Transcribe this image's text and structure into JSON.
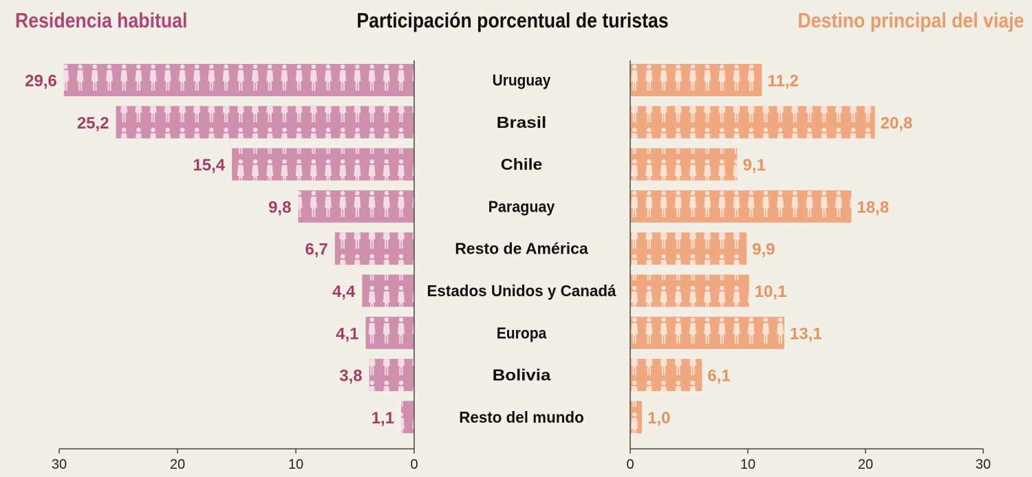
{
  "header": {
    "left_title": "Residencia habitual",
    "center_title": "Participación porcentual de turistas",
    "right_title": "Destino principal del viaje"
  },
  "colors": {
    "background": "#f2efe7",
    "left_bar": "#cf90ad",
    "left_text": "#a83b66",
    "right_bar": "#f0a880",
    "right_text": "#e8935e",
    "figure": "#f3dce6",
    "figure_right": "#fbe2d2",
    "axis": "#444444"
  },
  "chart_data": {
    "type": "bar",
    "layout": "back-to-back horizontal pictogram bars",
    "title": "Participación porcentual de turistas",
    "categories": [
      "Uruguay",
      "Brasil",
      "Chile",
      "Paraguay",
      "Resto de América",
      "Estados Unidos y Canadá",
      "Europa",
      "Bolivia",
      "Resto del mundo"
    ],
    "series": [
      {
        "name": "Residencia habitual",
        "side": "left",
        "values": [
          29.6,
          25.2,
          15.4,
          9.8,
          6.7,
          4.4,
          4.1,
          3.8,
          1.1
        ],
        "labels": [
          "29,6",
          "25,2",
          "15,4",
          "9,8",
          "6,7",
          "4,4",
          "4,1",
          "3,8",
          "1,1"
        ]
      },
      {
        "name": "Destino principal del viaje",
        "side": "right",
        "values": [
          11.2,
          20.8,
          9.1,
          18.8,
          9.9,
          10.1,
          13.1,
          6.1,
          1.0
        ],
        "labels": [
          "11,2",
          "20,8",
          "9,1",
          "18,8",
          "9,9",
          "10,1",
          "13,1",
          "6,1",
          "1,0"
        ]
      }
    ],
    "left_axis": {
      "range": [
        30,
        0
      ],
      "ticks": [
        "30",
        "20",
        "10",
        "0"
      ]
    },
    "right_axis": {
      "range": [
        0,
        30
      ],
      "ticks": [
        "0",
        "10",
        "20",
        "30"
      ]
    },
    "grid": false,
    "legend": "none"
  }
}
